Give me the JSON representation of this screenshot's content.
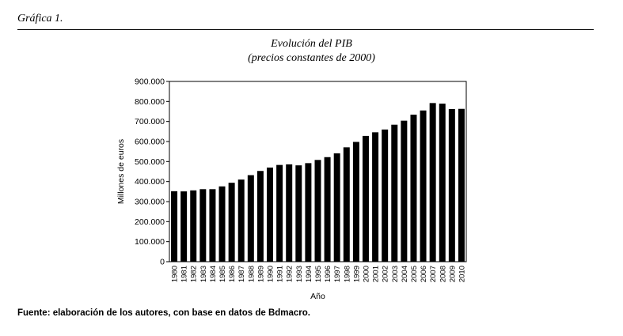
{
  "figure_label": "Gráfica 1.",
  "source_note": "Fuente: elaboración de los autores, con base en datos de Bdmacro.",
  "chart_data": {
    "type": "bar",
    "title": "Evolución del PIB",
    "subtitle": "(precios constantes de 2000)",
    "xlabel": "Año",
    "ylabel": "Millones de euros",
    "ylim": [
      0,
      900000
    ],
    "yticks": [
      0,
      100000,
      200000,
      300000,
      400000,
      500000,
      600000,
      700000,
      800000,
      900000
    ],
    "ytick_labels": [
      "0",
      "100.000",
      "200.000",
      "300.000",
      "400.000",
      "500.000",
      "600.000",
      "700.000",
      "800.000",
      "900.000"
    ],
    "categories": [
      "1980",
      "1981",
      "1982",
      "1983",
      "1984",
      "1985",
      "1986",
      "1987",
      "1988",
      "1989",
      "1990",
      "1991",
      "1992",
      "1993",
      "1994",
      "1995",
      "1996",
      "1997",
      "1998",
      "1999",
      "2000",
      "2001",
      "2002",
      "2003",
      "2004",
      "2005",
      "2006",
      "2007",
      "2008",
      "2009",
      "2010"
    ],
    "values": [
      352000,
      351000,
      356000,
      362000,
      362000,
      376000,
      394000,
      410000,
      432000,
      453000,
      470000,
      483000,
      486000,
      481000,
      492000,
      508000,
      522000,
      541000,
      571000,
      598000,
      628000,
      646000,
      660000,
      684000,
      704000,
      734000,
      755000,
      792000,
      789000,
      762000,
      763000
    ],
    "bar_color": "#000000",
    "grid": false,
    "legend": false
  }
}
